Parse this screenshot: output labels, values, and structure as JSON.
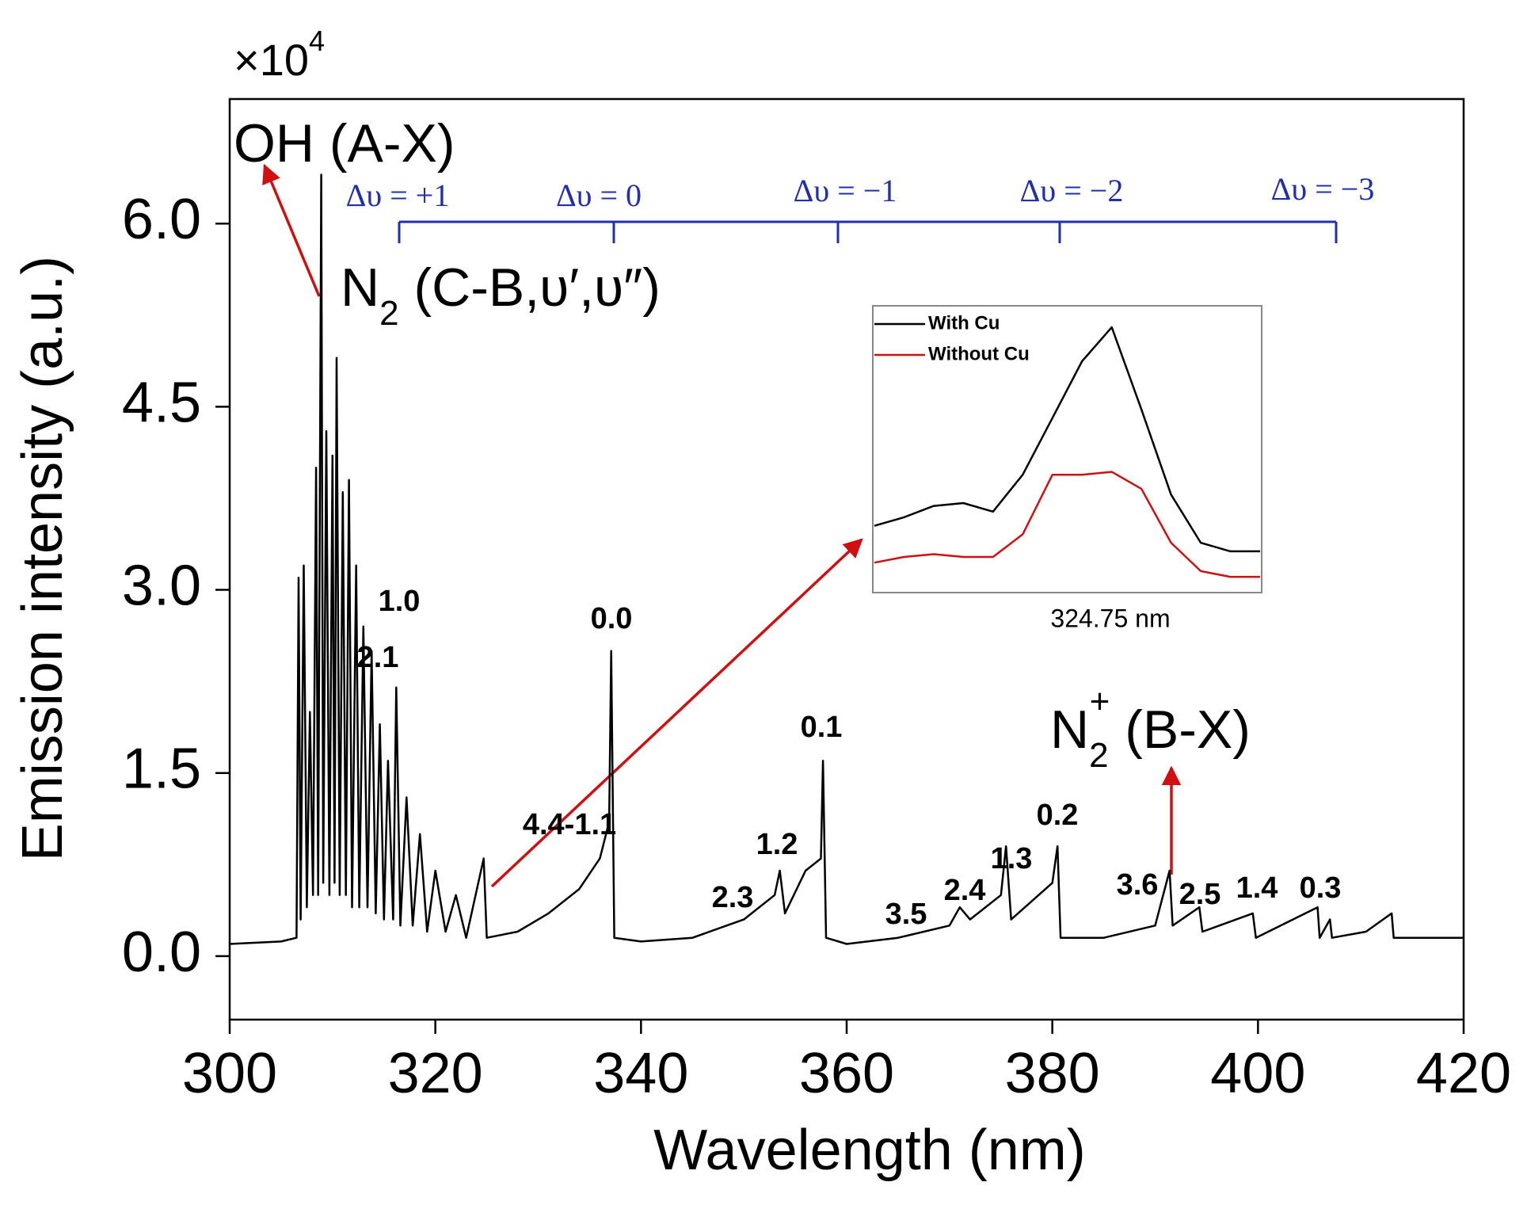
{
  "chart_data": [
    {
      "type": "line",
      "xlabel": "Wavelength (nm)",
      "ylabel": "Emission intensity (a.u.)",
      "y_multiplier": "×10",
      "y_multiplier_exp": "4",
      "xlim": [
        300,
        420
      ],
      "xticks": [
        300,
        320,
        340,
        360,
        380,
        400,
        420
      ],
      "ylim": [
        -0.52,
        7.02
      ],
      "yticks": [
        {
          "value": 0,
          "label": "0.0"
        },
        1.5,
        {
          "value": 3,
          "label": "3.0"
        },
        4.5,
        {
          "value": 6,
          "label": "6.0"
        }
      ],
      "x": [
        300,
        305,
        306.5,
        306.7,
        306.9,
        307.2,
        307.5,
        307.8,
        308.1,
        308.4,
        308.6,
        308.9,
        309.1,
        309.4,
        309.7,
        310.0,
        310.2,
        310.4,
        310.7,
        311.0,
        311.3,
        311.6,
        311.9,
        312.3,
        312.6,
        313.0,
        313.4,
        313.8,
        314.2,
        314.6,
        315.0,
        315.4,
        315.9,
        316.2,
        316.6,
        317.2,
        317.8,
        318.5,
        319.2,
        320,
        321,
        322,
        323,
        324.7,
        325,
        328,
        331,
        334,
        336,
        336.9,
        337.1,
        337.4,
        340,
        345,
        350,
        353,
        353.5,
        354,
        356,
        357.5,
        357.7,
        358,
        360,
        365,
        370,
        371,
        372,
        375,
        375.5,
        376,
        380,
        380.5,
        380.8,
        385,
        390,
        391.4,
        391.7,
        394.3,
        394.6,
        399.5,
        399.8,
        405.8,
        406,
        407,
        407.2,
        410.5,
        413,
        413.2,
        420
      ],
      "series": [
        {
          "name": "Spectrum",
          "color": "#000000",
          "values": [
            0.1,
            0.12,
            0.15,
            3.1,
            0.3,
            3.2,
            0.4,
            2.0,
            0.5,
            4.0,
            0.5,
            6.4,
            0.6,
            4.3,
            0.5,
            4.1,
            0.6,
            4.9,
            0.5,
            3.8,
            0.5,
            3.9,
            0.4,
            3.2,
            0.4,
            2.7,
            0.4,
            2.5,
            0.35,
            1.9,
            0.3,
            1.6,
            0.3,
            2.2,
            0.25,
            1.3,
            0.25,
            1.0,
            0.2,
            0.7,
            0.2,
            0.5,
            0.15,
            0.8,
            0.15,
            0.2,
            0.35,
            0.55,
            0.8,
            1.1,
            2.5,
            0.15,
            0.12,
            0.15,
            0.3,
            0.5,
            0.7,
            0.35,
            0.7,
            0.8,
            1.6,
            0.15,
            0.1,
            0.15,
            0.25,
            0.4,
            0.3,
            0.5,
            0.9,
            0.3,
            0.6,
            0.9,
            0.15,
            0.15,
            0.25,
            0.7,
            0.25,
            0.4,
            0.2,
            0.35,
            0.15,
            0.4,
            0.15,
            0.3,
            0.15,
            0.2,
            0.35,
            0.15,
            0.15
          ]
        }
      ],
      "annotations": [
        "OH (A-X)"
      ],
      "molecule_labels": [
        {
          "text": "N",
          "sub": "2",
          "rest": " (C-B,υ′,υ″)"
        },
        {
          "text": "N",
          "sub": "2",
          "sup": "+",
          "rest": " (B-X)"
        }
      ],
      "band_labels": [
        "1.0",
        "2.1",
        "0.0",
        "4.4-1.1",
        "2.3",
        "1.2",
        "0.1",
        "3.5",
        "2.4",
        "1.3",
        "0.2",
        "3.6",
        "2.5",
        "1.4",
        "0.3"
      ],
      "delta_labels": [
        "Δυ = +1",
        "Δυ = 0",
        "Δυ = −1",
        "Δυ = −2",
        "Δυ = −3"
      ]
    },
    {
      "type": "line",
      "xlabel": "324.75 nm",
      "ylim": [
        0,
        1
      ],
      "series": [
        {
          "name": "With Cu",
          "color": "#000000",
          "values": [
            0.23,
            0.26,
            0.3,
            0.31,
            0.28,
            0.41,
            0.61,
            0.81,
            0.93,
            0.64,
            0.34,
            0.17,
            0.14,
            0.14
          ]
        },
        {
          "name": "Without Cu",
          "color": "#d01010",
          "values": [
            0.1,
            0.12,
            0.13,
            0.12,
            0.12,
            0.2,
            0.41,
            0.41,
            0.42,
            0.36,
            0.17,
            0.07,
            0.05,
            0.05
          ]
        }
      ]
    }
  ]
}
